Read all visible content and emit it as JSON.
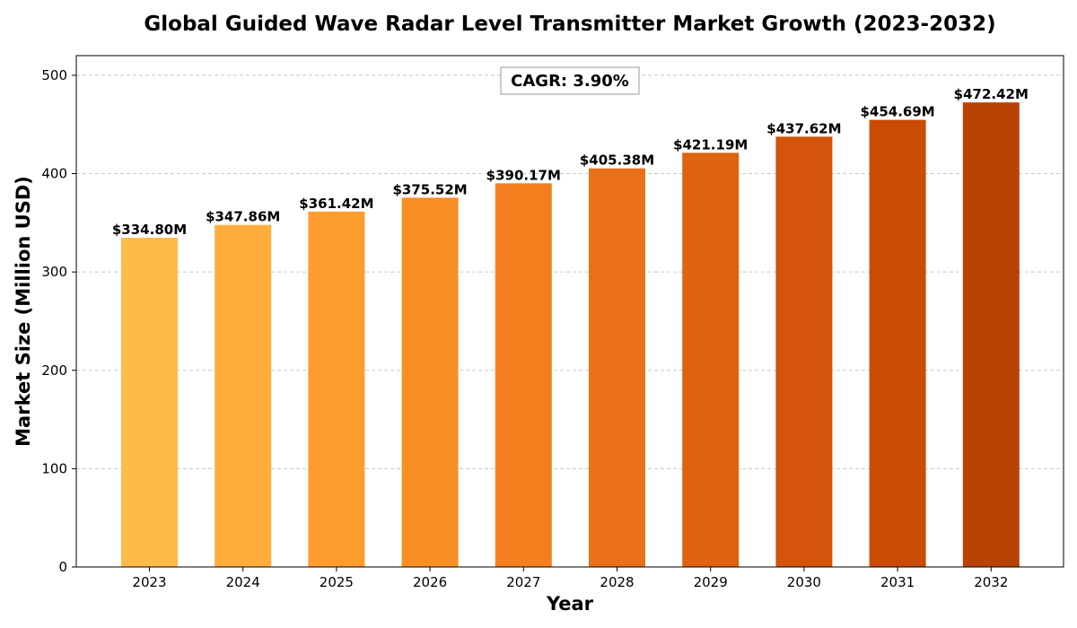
{
  "chart_data": {
    "type": "bar",
    "title": "Global Guided Wave Radar Level Transmitter Market Growth (2023-2032)",
    "xlabel": "Year",
    "ylabel": "Market Size (Million USD)",
    "categories": [
      "2023",
      "2024",
      "2025",
      "2026",
      "2027",
      "2028",
      "2029",
      "2030",
      "2031",
      "2032"
    ],
    "values": [
      334.8,
      347.86,
      361.42,
      375.52,
      390.17,
      405.38,
      421.19,
      437.62,
      454.69,
      472.42
    ],
    "data_labels": [
      "$334.80M",
      "$347.86M",
      "$361.42M",
      "$375.52M",
      "$390.17M",
      "$405.38M",
      "$421.19M",
      "$437.62M",
      "$454.69M",
      "$472.42M"
    ],
    "colors": [
      "#ffbb4a",
      "#ffae3e",
      "#fe9c2e",
      "#f88f24",
      "#f37f1f",
      "#ea7118",
      "#df6211",
      "#d5540b",
      "#c94b04",
      "#b74304"
    ],
    "ylim": [
      0,
      520
    ],
    "yticks": [
      0,
      100,
      200,
      300,
      400,
      500
    ],
    "grid": "horizontal-dashed",
    "annotation": "CAGR: 3.90%",
    "legend": "none"
  }
}
